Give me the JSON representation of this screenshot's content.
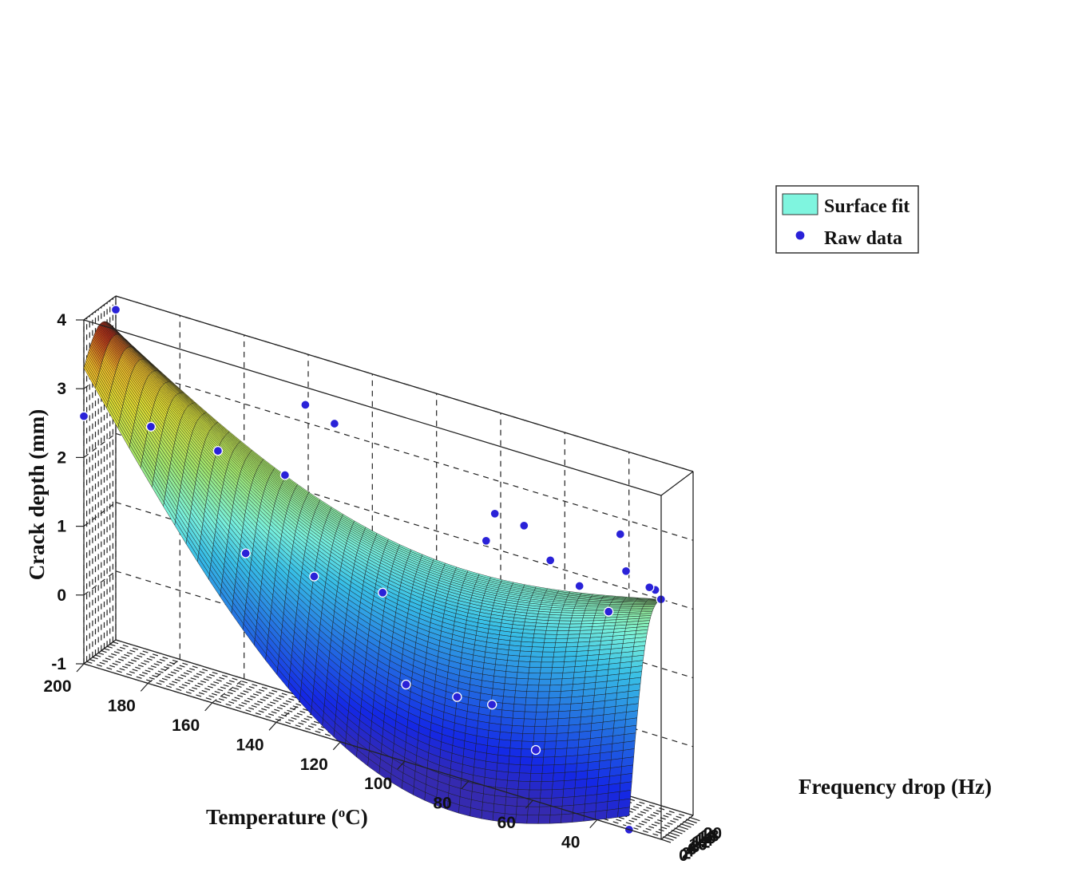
{
  "chart_data": {
    "type": "surface3d",
    "xlabel": "Temperature (",
    "xlabel_sup": "o",
    "xlabel_tail": "C)",
    "ylabel": "Frequency drop (Hz)",
    "zlabel": "Crack depth (mm)",
    "xlim": [
      20,
      200
    ],
    "ylim": [
      0,
      22
    ],
    "zlim": [
      -1,
      4
    ],
    "x_ticks": [
      "200",
      "180",
      "160",
      "140",
      "120",
      "100",
      "80",
      "60",
      "40"
    ],
    "y_ticks": [
      "0",
      "2",
      "4",
      "6",
      "8",
      "10",
      "12",
      "14",
      "16",
      "18",
      "20"
    ],
    "z_ticks": [
      "4",
      "3",
      "2",
      "1",
      "0",
      "-1"
    ],
    "grid": true,
    "legend": {
      "position": "top-right",
      "entries": [
        {
          "label": "Surface fit",
          "kind": "patch",
          "color": "#7ff5df"
        },
        {
          "label": "Raw data",
          "kind": "marker",
          "color": "#2a22d8"
        }
      ]
    },
    "colormap": "parula",
    "surface_corners": [
      {
        "x": 200,
        "y": 0,
        "z": 3.3
      },
      {
        "x": 30,
        "y": 0,
        "z": -0.8
      },
      {
        "x": 30,
        "y": 22,
        "z": 2.0
      },
      {
        "x": 200,
        "y": 22,
        "z": 3.5
      }
    ],
    "raw_data": [
      {
        "x": 200,
        "y": 0,
        "z": 2.6
      },
      {
        "x": 180,
        "y": 2,
        "z": 2.7
      },
      {
        "x": 160,
        "y": 4,
        "z": 2.6
      },
      {
        "x": 140,
        "y": 6,
        "z": 2.5
      },
      {
        "x": 150,
        "y": 1,
        "z": 1.3
      },
      {
        "x": 130,
        "y": 4,
        "z": 1.2
      },
      {
        "x": 110,
        "y": 7,
        "z": 1.2
      },
      {
        "x": 100,
        "y": 1,
        "z": 0.1
      },
      {
        "x": 85,
        "y": 3,
        "z": 0.1
      },
      {
        "x": 75,
        "y": 5,
        "z": 0.1
      },
      {
        "x": 60,
        "y": 2,
        "z": -0.3
      },
      {
        "x": 30,
        "y": 0,
        "z": -1.0
      },
      {
        "x": 200,
        "y": 22,
        "z": 3.8
      },
      {
        "x": 140,
        "y": 20,
        "z": 3.3
      },
      {
        "x": 130,
        "y": 18,
        "z": 3.2
      },
      {
        "x": 80,
        "y": 18,
        "z": 2.6
      },
      {
        "x": 70,
        "y": 16,
        "z": 2.6
      },
      {
        "x": 80,
        "y": 12,
        "z": 2.3
      },
      {
        "x": 60,
        "y": 12,
        "z": 2.3
      },
      {
        "x": 50,
        "y": 10,
        "z": 2.1
      },
      {
        "x": 40,
        "y": 8,
        "z": 1.9
      },
      {
        "x": 40,
        "y": 20,
        "z": 2.3
      },
      {
        "x": 30,
        "y": 22,
        "z": 2.0
      },
      {
        "x": 30,
        "y": 18,
        "z": 2.2
      },
      {
        "x": 30,
        "y": 14,
        "z": 2.3
      },
      {
        "x": 40,
        "y": 16,
        "z": 2.9
      }
    ]
  }
}
